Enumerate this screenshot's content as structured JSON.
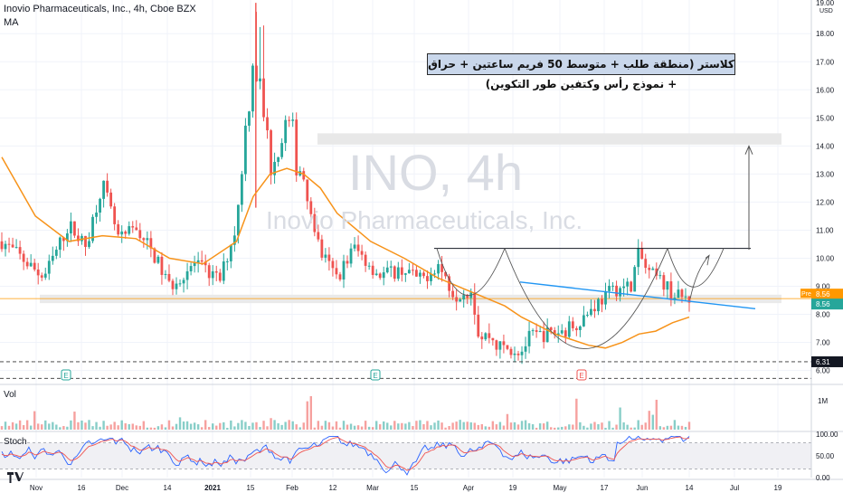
{
  "header": {
    "title": "Inovio Pharmaceuticals, Inc., 4h, Cboe BZX",
    "indicator": "MA",
    "currency": "USD"
  },
  "watermark": {
    "symbol": "INO, 4h",
    "name": "Inovio Pharmaceuticals, Inc."
  },
  "annotation": {
    "text": "كلاستر (منطقة طلب + متوسط 50 فريم ساعتين + حراق + نموذج رأس وكتفين طور التكوين)"
  },
  "price_axis": {
    "ticks": [
      "18.00",
      "17.00",
      "16.00",
      "15.00",
      "14.00",
      "13.00",
      "12.00",
      "11.00",
      "10.00",
      "9.00",
      "8.00",
      "7.00",
      "6.00"
    ],
    "partial_top": "19.00"
  },
  "price_tags": {
    "pre_label": "Pre",
    "pre_value": "8.56",
    "last_value": "8.56",
    "level_value": "6.31"
  },
  "volume_pane": {
    "label": "Vol",
    "tick": "1M"
  },
  "stoch_pane": {
    "label": "Stoch",
    "ticks": [
      "100.00",
      "50.00",
      "0.00"
    ]
  },
  "time_axis": {
    "labels": [
      "Nov",
      "16",
      "Dec",
      "14",
      "2021",
      "15",
      "Feb",
      "12",
      "Mar",
      "15",
      "Apr",
      "19",
      "May",
      "17",
      "Jun",
      "14",
      "Jul",
      "19"
    ]
  },
  "markers": {
    "earnings": [
      "E",
      "E",
      "E"
    ]
  },
  "colors": {
    "up": "#26a69a",
    "down": "#ef5350",
    "ma": "#f7931a",
    "neckline": "#131722",
    "trendline": "#2196f3",
    "zone": "#e6e6e6",
    "stoch_k": "#2962ff",
    "stoch_d": "#ef5350",
    "pre_tag": "#ff9800",
    "last_tag": "#26a69a"
  },
  "chart_data": {
    "type": "candlestick",
    "title": "Inovio Pharmaceuticals, Inc., 4h, Cboe BZX",
    "ylim": [
      5.6,
      19.2
    ],
    "price_path": {
      "t": [
        0,
        2,
        5,
        8,
        10,
        12,
        14,
        16,
        18,
        20,
        23,
        26,
        28,
        30,
        32,
        34,
        36,
        37,
        38,
        40,
        42,
        45,
        48,
        50,
        52,
        54,
        56,
        57,
        58,
        59,
        60,
        62,
        63,
        65,
        67,
        69,
        71,
        73,
        75,
        76,
        77,
        79,
        80,
        81,
        82
      ],
      "close": [
        10.6,
        10.1,
        9.3,
        11.2,
        10.4,
        12.7,
        10.6,
        11.1,
        10.2,
        9.0,
        9.8,
        9.2,
        11.2,
        17.5,
        13.5,
        14.8,
        12.9,
        11.5,
        10.2,
        9.3,
        10.4,
        9.4,
        9.6,
        9.2,
        9.8,
        8.7,
        8.9,
        7.1,
        7.3,
        6.9,
        6.8,
        6.7,
        7.2,
        7.3,
        7.4,
        7.8,
        8.4,
        8.9,
        9.0,
        10.2,
        9.5,
        9.1,
        8.7,
        8.6,
        8.56
      ]
    },
    "ma_path": {
      "t": [
        0,
        4,
        8,
        12,
        16,
        20,
        24,
        28,
        30,
        32,
        34,
        36,
        38,
        40,
        44,
        48,
        52,
        56,
        60,
        62,
        64,
        66,
        68,
        70,
        72,
        74,
        76,
        78,
        80,
        82
      ],
      "value": [
        13.6,
        11.5,
        10.6,
        10.8,
        10.7,
        10.0,
        9.8,
        10.6,
        12.2,
        13.0,
        13.2,
        13.0,
        12.5,
        11.6,
        10.6,
        10.0,
        9.3,
        8.8,
        8.3,
        7.9,
        7.6,
        7.3,
        7.1,
        6.9,
        6.8,
        7.0,
        7.3,
        7.4,
        7.7,
        7.9
      ]
    },
    "levels": {
      "demand_zone": [
        8.4,
        8.7
      ],
      "supply_zone": [
        14.05,
        14.45
      ],
      "neckline": 10.35,
      "support_dashed": [
        6.31,
        5.72
      ],
      "projected_target": 14.0
    },
    "stoch_ylim": [
      0,
      100
    ]
  }
}
